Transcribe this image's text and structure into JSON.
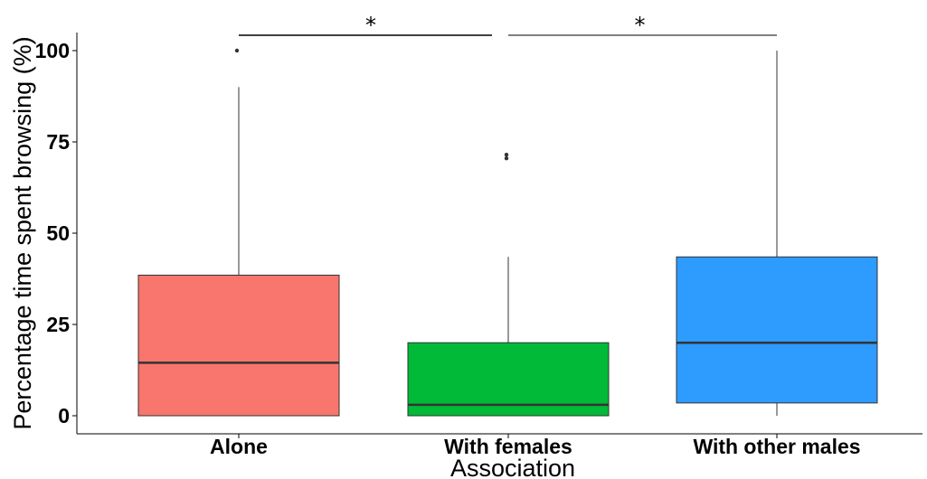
{
  "chart_data": {
    "type": "boxplot",
    "xlabel": "Association",
    "ylabel": "Percentage time spent browsing (%)",
    "ylim": [
      -5,
      105
    ],
    "yticks": [
      0,
      25,
      50,
      75,
      100
    ],
    "ytick_labels": [
      "0",
      "25",
      "50",
      "75",
      "100"
    ],
    "categories": [
      "Alone",
      "With females",
      "With other males"
    ],
    "colors": [
      "#F8766D",
      "#00BA38",
      "#2E9BFF"
    ],
    "boxes": [
      {
        "category": "Alone",
        "whisker_low": 0,
        "q1": 0,
        "median": 14.5,
        "q3": 38.5,
        "whisker_high": 90,
        "outliers": [
          100
        ]
      },
      {
        "category": "With females",
        "whisker_low": 0,
        "q1": 0,
        "median": 3,
        "q3": 20,
        "whisker_high": 43.5,
        "outliers": [
          70.5,
          71.5
        ]
      },
      {
        "category": "With other males",
        "whisker_low": 0,
        "q1": 3.5,
        "median": 20,
        "q3": 43.5,
        "whisker_high": 100,
        "outliers": []
      }
    ],
    "grid": false,
    "legend": "none",
    "significance": [
      {
        "from": "Alone",
        "to": "With females",
        "label": "*"
      },
      {
        "from": "With females",
        "to": "With other males",
        "label": "*"
      }
    ]
  }
}
